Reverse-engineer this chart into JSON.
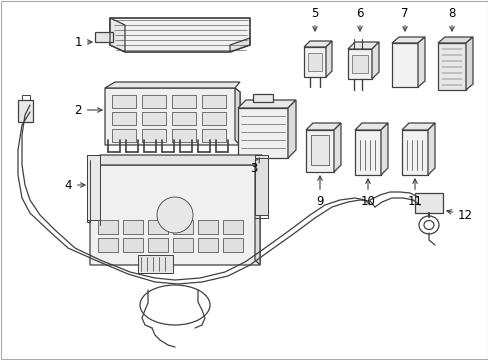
{
  "background_color": "#ffffff",
  "line_color": "#404040",
  "label_color": "#000000",
  "fig_width": 4.89,
  "fig_height": 3.6,
  "dpi": 100,
  "border_color": "#cccccc"
}
